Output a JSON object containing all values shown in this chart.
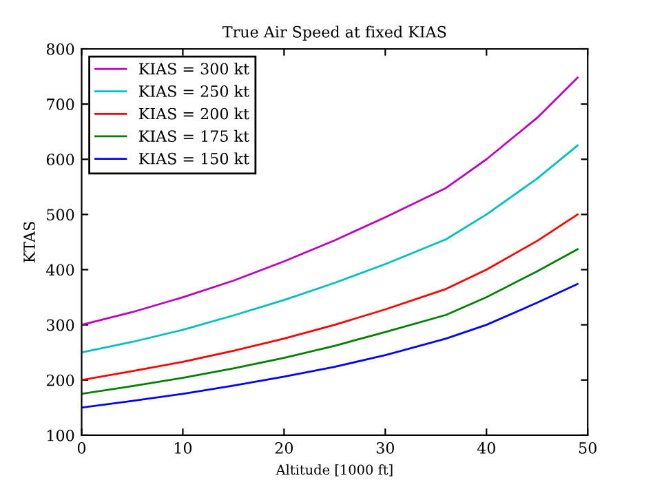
{
  "chart_data": {
    "type": "line",
    "title": "True Air Speed at fixed KIAS",
    "xlabel": "Altitude [1000 ft]",
    "ylabel": "KTAS",
    "x": [
      0,
      5,
      10,
      15,
      20,
      25,
      30,
      36,
      40,
      45,
      49
    ],
    "series": [
      {
        "name": "KIAS = 300 kt",
        "color": "#bf00bf",
        "values": [
          300,
          323,
          350,
          380,
          415,
          453,
          495,
          548,
          600,
          675,
          748
        ]
      },
      {
        "name": "KIAS = 250 kt",
        "color": "#00bfbf",
        "values": [
          250,
          269,
          291,
          317,
          345,
          376,
          410,
          455,
          500,
          565,
          625
        ]
      },
      {
        "name": "KIAS = 200 kt",
        "color": "#ff0000",
        "values": [
          200,
          216,
          233,
          253,
          275,
          300,
          328,
          365,
          400,
          452,
          500
        ]
      },
      {
        "name": "KIAS = 175 kt",
        "color": "#008000",
        "values": [
          175,
          189,
          204,
          221,
          240,
          262,
          287,
          318,
          350,
          397,
          437
        ]
      },
      {
        "name": "KIAS = 150 kt",
        "color": "#0000ff",
        "values": [
          150,
          162,
          175,
          190,
          206,
          224,
          245,
          275,
          300,
          340,
          374
        ]
      }
    ],
    "xlim": [
      0,
      50
    ],
    "xticks": [
      0,
      10,
      20,
      30,
      40,
      50
    ],
    "ylim": [
      100,
      800
    ],
    "yticks": [
      100,
      200,
      300,
      400,
      500,
      600,
      700,
      800
    ],
    "legend": "top left",
    "grid": false,
    "marker": "none",
    "line_style": "solid"
  }
}
